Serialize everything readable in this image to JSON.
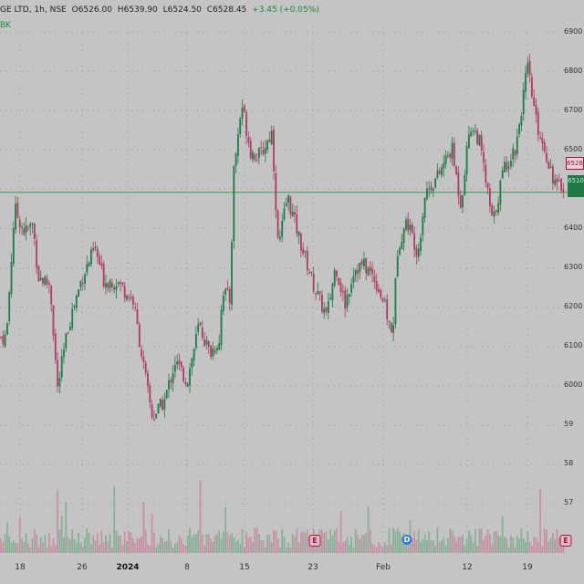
{
  "header": {
    "title": "GE LTD, 1h, NSE",
    "open": "O6526.00",
    "high": "H6539.90",
    "low": "L6524.50",
    "close": "C6528.45",
    "change": "+3.45 (+0.05%)"
  },
  "legend_tag": "BK",
  "colors": {
    "up": "#1f7a45",
    "down": "#b03a5e",
    "grid": "#9c9c9c",
    "hline": "#3f9a5a",
    "background": "#c4c4c4"
  },
  "price_axis_labels": [
    "6900",
    "6800",
    "6700",
    "6500",
    "6400",
    "6300",
    "6200",
    "6100",
    "6000",
    "59",
    "58",
    "57"
  ],
  "price_badges": {
    "current": "6528",
    "line": "6510"
  },
  "x_axis_labels": [
    {
      "text": "18",
      "bold": false
    },
    {
      "text": "26",
      "bold": false
    },
    {
      "text": "2024",
      "bold": true
    },
    {
      "text": "8",
      "bold": false
    },
    {
      "text": "15",
      "bold": false
    },
    {
      "text": "23",
      "bold": false
    },
    {
      "text": "Feb",
      "bold": false
    },
    {
      "text": "12",
      "bold": false
    },
    {
      "text": "19",
      "bold": false
    }
  ],
  "event_icons": [
    "E",
    "E",
    "D"
  ],
  "chart_data": {
    "type": "candlestick",
    "symbol": "GE LTD",
    "interval": "1h",
    "exchange": "NSE",
    "ohlc_last": {
      "open": 6526.0,
      "high": 6539.9,
      "low": 6524.5,
      "close": 6528.45,
      "change": 3.45,
      "change_pct": 0.05
    },
    "horizontal_line": 6510,
    "ylim": [
      5650,
      6920
    ],
    "close_path": [
      {
        "x": 0,
        "close": 6150
      },
      {
        "x": 7,
        "close": 6150
      },
      {
        "x": 16,
        "close": 6470
      },
      {
        "x": 27,
        "close": 6410
      },
      {
        "x": 36,
        "close": 6430
      },
      {
        "x": 42,
        "close": 6300
      },
      {
        "x": 55,
        "close": 6280
      },
      {
        "x": 63,
        "close": 6020
      },
      {
        "x": 75,
        "close": 6180
      },
      {
        "x": 90,
        "close": 6300
      },
      {
        "x": 104,
        "close": 6370
      },
      {
        "x": 114,
        "close": 6290
      },
      {
        "x": 128,
        "close": 6290
      },
      {
        "x": 146,
        "close": 6240
      },
      {
        "x": 160,
        "close": 6040
      },
      {
        "x": 167,
        "close": 5950
      },
      {
        "x": 180,
        "close": 5990
      },
      {
        "x": 192,
        "close": 6090
      },
      {
        "x": 205,
        "close": 6040
      },
      {
        "x": 218,
        "close": 6180
      },
      {
        "x": 230,
        "close": 6110
      },
      {
        "x": 240,
        "close": 6140
      },
      {
        "x": 244,
        "close": 6270
      },
      {
        "x": 252,
        "close": 6240
      },
      {
        "x": 256,
        "close": 6560
      },
      {
        "x": 265,
        "close": 6730
      },
      {
        "x": 275,
        "close": 6610
      },
      {
        "x": 285,
        "close": 6600
      },
      {
        "x": 298,
        "close": 6660
      },
      {
        "x": 305,
        "close": 6370
      },
      {
        "x": 315,
        "close": 6500
      },
      {
        "x": 330,
        "close": 6380
      },
      {
        "x": 345,
        "close": 6270
      },
      {
        "x": 358,
        "close": 6200
      },
      {
        "x": 368,
        "close": 6330
      },
      {
        "x": 378,
        "close": 6230
      },
      {
        "x": 388,
        "close": 6320
      },
      {
        "x": 398,
        "close": 6330
      },
      {
        "x": 410,
        "close": 6300
      },
      {
        "x": 420,
        "close": 6240
      },
      {
        "x": 430,
        "close": 6150
      },
      {
        "x": 436,
        "close": 6380
      },
      {
        "x": 446,
        "close": 6440
      },
      {
        "x": 458,
        "close": 6360
      },
      {
        "x": 466,
        "close": 6510
      },
      {
        "x": 480,
        "close": 6550
      },
      {
        "x": 495,
        "close": 6620
      },
      {
        "x": 505,
        "close": 6480
      },
      {
        "x": 515,
        "close": 6680
      },
      {
        "x": 525,
        "close": 6640
      },
      {
        "x": 540,
        "close": 6430
      },
      {
        "x": 552,
        "close": 6570
      },
      {
        "x": 565,
        "close": 6620
      },
      {
        "x": 578,
        "close": 6820
      },
      {
        "x": 588,
        "close": 6680
      },
      {
        "x": 598,
        "close": 6610
      },
      {
        "x": 610,
        "close": 6520
      },
      {
        "x": 618,
        "close": 6530
      }
    ],
    "volume_max": 100
  }
}
